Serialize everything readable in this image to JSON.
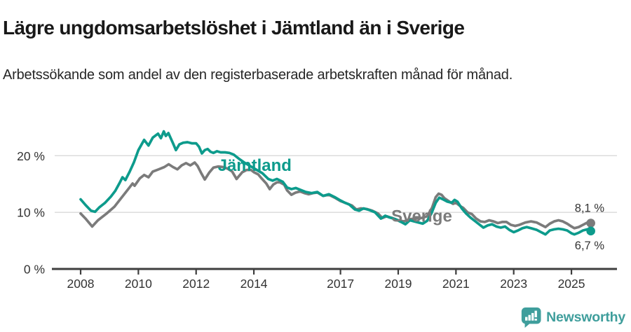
{
  "header": {
    "title": "Lägre ungdomsarbetslöshet i Jämtland än i Sverige",
    "subtitle": "Arbetssökande som andel av den registerbaserade arbetskraften månad för månad."
  },
  "footer": {
    "brand": "Newsworthy",
    "brand_icon": "bar-chart-speech-bubble-icon"
  },
  "colors": {
    "jamtland": "#0d9b8c",
    "sverige": "#7b7b7b",
    "grid": "#d9d9d9",
    "axis": "#3e3e3e",
    "axis_text": "#333333",
    "brand": "#3f9e9c"
  },
  "chart_data": {
    "type": "line",
    "title": "Lägre ungdomsarbetslöshet i Jämtland än i Sverige",
    "xlabel": "",
    "ylabel": "",
    "unit": "%",
    "grid": true,
    "legend": "inline-labels",
    "x_axis": {
      "range": [
        2007.1,
        2026.6
      ],
      "ticks": [
        2008,
        2010,
        2012,
        2014,
        2017,
        2019,
        2021,
        2023,
        2025
      ],
      "labels": [
        "2008",
        "2010",
        "2012",
        "2014",
        "2017",
        "2019",
        "2021",
        "2023",
        "2025"
      ]
    },
    "y_axis": {
      "range": [
        0,
        27.7
      ],
      "ticks": [
        0,
        10,
        20
      ],
      "labels": [
        "0 %",
        "10 %",
        "20 %"
      ]
    },
    "series": [
      {
        "name": "Sverige",
        "color": "#7b7b7b",
        "end_label": "8,1 %",
        "end_value": 8.1,
        "label_anchor": {
          "x": 2018.76,
          "y": 8.35
        },
        "points": [
          [
            2008.0,
            9.8
          ],
          [
            2008.17,
            8.9
          ],
          [
            2008.4,
            7.5
          ],
          [
            2008.6,
            8.6
          ],
          [
            2008.9,
            9.8
          ],
          [
            2009.17,
            11.0
          ],
          [
            2009.4,
            12.5
          ],
          [
            2009.65,
            14.1
          ],
          [
            2009.8,
            15.1
          ],
          [
            2009.87,
            14.7
          ],
          [
            2010.05,
            16.0
          ],
          [
            2010.2,
            16.6
          ],
          [
            2010.35,
            16.2
          ],
          [
            2010.5,
            17.2
          ],
          [
            2010.7,
            17.6
          ],
          [
            2010.9,
            18.0
          ],
          [
            2011.05,
            18.5
          ],
          [
            2011.2,
            18.0
          ],
          [
            2011.35,
            17.6
          ],
          [
            2011.5,
            18.3
          ],
          [
            2011.65,
            18.7
          ],
          [
            2011.8,
            18.3
          ],
          [
            2011.95,
            18.8
          ],
          [
            2012.05,
            18.2
          ],
          [
            2012.17,
            17.0
          ],
          [
            2012.3,
            15.8
          ],
          [
            2012.45,
            17.0
          ],
          [
            2012.6,
            17.9
          ],
          [
            2012.77,
            18.1
          ],
          [
            2012.93,
            18.0
          ],
          [
            2013.1,
            17.7
          ],
          [
            2013.25,
            17.2
          ],
          [
            2013.4,
            15.9
          ],
          [
            2013.6,
            17.1
          ],
          [
            2013.75,
            17.5
          ],
          [
            2013.9,
            17.5
          ],
          [
            2014.0,
            17.1
          ],
          [
            2014.15,
            16.7
          ],
          [
            2014.25,
            16.1
          ],
          [
            2014.43,
            15.1
          ],
          [
            2014.55,
            14.1
          ],
          [
            2014.67,
            14.9
          ],
          [
            2014.8,
            15.3
          ],
          [
            2014.9,
            15.3
          ],
          [
            2015.05,
            14.9
          ],
          [
            2015.15,
            13.9
          ],
          [
            2015.3,
            13.1
          ],
          [
            2015.45,
            13.5
          ],
          [
            2015.6,
            13.7
          ],
          [
            2015.75,
            13.4
          ],
          [
            2015.9,
            13.2
          ],
          [
            2016.05,
            13.4
          ],
          [
            2016.2,
            13.5
          ],
          [
            2016.4,
            12.9
          ],
          [
            2016.6,
            13.1
          ],
          [
            2016.8,
            12.6
          ],
          [
            2017.0,
            12.0
          ],
          [
            2017.2,
            11.6
          ],
          [
            2017.4,
            11.2
          ],
          [
            2017.55,
            10.5
          ],
          [
            2017.7,
            10.7
          ],
          [
            2017.9,
            10.6
          ],
          [
            2018.1,
            10.3
          ],
          [
            2018.3,
            9.8
          ],
          [
            2018.45,
            9.0
          ],
          [
            2018.6,
            9.3
          ],
          [
            2018.8,
            9.0
          ],
          [
            2019.0,
            8.6
          ],
          [
            2019.2,
            8.4
          ],
          [
            2019.4,
            8.8
          ],
          [
            2019.6,
            8.9
          ],
          [
            2019.8,
            9.0
          ],
          [
            2020.0,
            9.3
          ],
          [
            2020.17,
            10.8
          ],
          [
            2020.3,
            12.7
          ],
          [
            2020.4,
            13.3
          ],
          [
            2020.5,
            13.1
          ],
          [
            2020.6,
            12.5
          ],
          [
            2020.77,
            11.9
          ],
          [
            2020.9,
            11.5
          ],
          [
            2021.0,
            11.7
          ],
          [
            2021.15,
            11.1
          ],
          [
            2021.25,
            10.8
          ],
          [
            2021.4,
            10.0
          ],
          [
            2021.55,
            9.7
          ],
          [
            2021.7,
            8.9
          ],
          [
            2021.85,
            8.4
          ],
          [
            2022.0,
            8.3
          ],
          [
            2022.15,
            8.6
          ],
          [
            2022.3,
            8.4
          ],
          [
            2022.45,
            8.1
          ],
          [
            2022.6,
            8.3
          ],
          [
            2022.75,
            8.3
          ],
          [
            2022.9,
            7.8
          ],
          [
            2023.05,
            7.6
          ],
          [
            2023.2,
            7.8
          ],
          [
            2023.4,
            8.2
          ],
          [
            2023.6,
            8.4
          ],
          [
            2023.8,
            8.2
          ],
          [
            2023.95,
            7.8
          ],
          [
            2024.1,
            7.4
          ],
          [
            2024.25,
            8.0
          ],
          [
            2024.4,
            8.4
          ],
          [
            2024.55,
            8.6
          ],
          [
            2024.7,
            8.4
          ],
          [
            2024.85,
            8.0
          ],
          [
            2025.0,
            7.5
          ],
          [
            2025.1,
            7.2
          ],
          [
            2025.25,
            7.4
          ],
          [
            2025.4,
            7.8
          ],
          [
            2025.55,
            8.2
          ],
          [
            2025.67,
            8.1
          ]
        ]
      },
      {
        "name": "Jämtland",
        "color": "#0d9b8c",
        "end_label": "6,7 %",
        "end_value": 6.7,
        "label_anchor": {
          "x": 2012.75,
          "y": 17.35
        },
        "points": [
          [
            2008.0,
            12.3
          ],
          [
            2008.17,
            11.3
          ],
          [
            2008.36,
            10.3
          ],
          [
            2008.5,
            10.1
          ],
          [
            2008.65,
            10.9
          ],
          [
            2008.85,
            11.7
          ],
          [
            2009.05,
            12.8
          ],
          [
            2009.2,
            13.8
          ],
          [
            2009.35,
            15.2
          ],
          [
            2009.45,
            16.2
          ],
          [
            2009.55,
            15.7
          ],
          [
            2009.7,
            17.2
          ],
          [
            2009.85,
            18.9
          ],
          [
            2010.0,
            21.0
          ],
          [
            2010.2,
            22.8
          ],
          [
            2010.35,
            21.8
          ],
          [
            2010.5,
            23.2
          ],
          [
            2010.68,
            23.9
          ],
          [
            2010.78,
            23.1
          ],
          [
            2010.88,
            24.3
          ],
          [
            2010.95,
            23.5
          ],
          [
            2011.04,
            24.0
          ],
          [
            2011.2,
            22.2
          ],
          [
            2011.3,
            21.0
          ],
          [
            2011.42,
            22.0
          ],
          [
            2011.55,
            22.3
          ],
          [
            2011.7,
            22.4
          ],
          [
            2011.85,
            22.2
          ],
          [
            2012.0,
            22.2
          ],
          [
            2012.1,
            21.6
          ],
          [
            2012.2,
            20.4
          ],
          [
            2012.3,
            21.0
          ],
          [
            2012.4,
            21.2
          ],
          [
            2012.5,
            20.7
          ],
          [
            2012.6,
            20.5
          ],
          [
            2012.72,
            20.8
          ],
          [
            2012.85,
            20.6
          ],
          [
            2013.0,
            20.6
          ],
          [
            2013.15,
            20.5
          ],
          [
            2013.3,
            20.2
          ],
          [
            2013.5,
            19.4
          ],
          [
            2013.7,
            18.7
          ],
          [
            2013.9,
            18.1
          ],
          [
            2014.1,
            17.5
          ],
          [
            2014.3,
            16.9
          ],
          [
            2014.5,
            15.9
          ],
          [
            2014.65,
            15.6
          ],
          [
            2014.8,
            15.9
          ],
          [
            2015.0,
            15.4
          ],
          [
            2015.15,
            14.4
          ],
          [
            2015.3,
            14.1
          ],
          [
            2015.45,
            14.3
          ],
          [
            2015.6,
            14.0
          ],
          [
            2015.8,
            13.6
          ],
          [
            2016.0,
            13.4
          ],
          [
            2016.2,
            13.6
          ],
          [
            2016.4,
            12.9
          ],
          [
            2016.6,
            13.2
          ],
          [
            2016.8,
            12.7
          ],
          [
            2017.0,
            12.1
          ],
          [
            2017.15,
            11.7
          ],
          [
            2017.3,
            11.4
          ],
          [
            2017.5,
            10.5
          ],
          [
            2017.65,
            10.3
          ],
          [
            2017.8,
            10.7
          ],
          [
            2018.0,
            10.4
          ],
          [
            2018.2,
            10.0
          ],
          [
            2018.4,
            8.9
          ],
          [
            2018.55,
            9.4
          ],
          [
            2018.7,
            9.1
          ],
          [
            2018.9,
            8.8
          ],
          [
            2019.1,
            8.3
          ],
          [
            2019.25,
            7.9
          ],
          [
            2019.4,
            8.6
          ],
          [
            2019.55,
            8.4
          ],
          [
            2019.7,
            8.2
          ],
          [
            2019.85,
            8.0
          ],
          [
            2020.0,
            8.5
          ],
          [
            2020.15,
            9.8
          ],
          [
            2020.3,
            11.7
          ],
          [
            2020.42,
            12.6
          ],
          [
            2020.55,
            12.3
          ],
          [
            2020.7,
            11.9
          ],
          [
            2020.85,
            11.7
          ],
          [
            2020.95,
            12.2
          ],
          [
            2021.05,
            11.9
          ],
          [
            2021.2,
            10.7
          ],
          [
            2021.35,
            9.8
          ],
          [
            2021.5,
            9.1
          ],
          [
            2021.65,
            8.5
          ],
          [
            2021.8,
            7.9
          ],
          [
            2021.95,
            7.3
          ],
          [
            2022.1,
            7.7
          ],
          [
            2022.25,
            7.9
          ],
          [
            2022.4,
            7.5
          ],
          [
            2022.55,
            7.3
          ],
          [
            2022.7,
            7.5
          ],
          [
            2022.85,
            6.9
          ],
          [
            2023.0,
            6.5
          ],
          [
            2023.15,
            6.8
          ],
          [
            2023.3,
            7.2
          ],
          [
            2023.45,
            7.4
          ],
          [
            2023.6,
            7.2
          ],
          [
            2023.8,
            6.9
          ],
          [
            2023.95,
            6.5
          ],
          [
            2024.1,
            6.1
          ],
          [
            2024.25,
            6.8
          ],
          [
            2024.4,
            7.0
          ],
          [
            2024.55,
            7.1
          ],
          [
            2024.7,
            7.0
          ],
          [
            2024.85,
            6.8
          ],
          [
            2025.0,
            6.3
          ],
          [
            2025.1,
            6.1
          ],
          [
            2025.25,
            6.4
          ],
          [
            2025.4,
            6.8
          ],
          [
            2025.55,
            7.0
          ],
          [
            2025.67,
            6.7
          ]
        ]
      }
    ]
  }
}
